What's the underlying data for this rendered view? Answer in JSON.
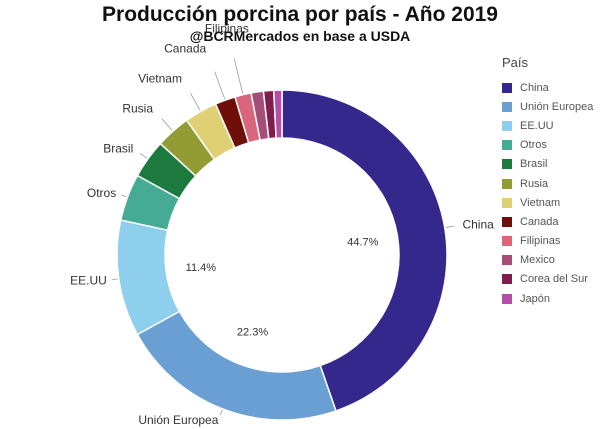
{
  "chart_data": {
    "type": "pie",
    "donut": true,
    "title": "Producción porcina por país - Año 2019",
    "subtitle": "@BCRMercados en base a USDA",
    "legend_title": "País",
    "legend_position": "right",
    "categories": [
      "China",
      "Unión Europea",
      "EE.UU",
      "Otros",
      "Brasil",
      "Rusia",
      "Vietnam",
      "Canada",
      "Filipinas",
      "Mexico",
      "Corea del Sur",
      "Japón"
    ],
    "values": [
      44.7,
      22.3,
      11.4,
      4.6,
      3.8,
      3.4,
      3.2,
      2.0,
      1.6,
      1.2,
      1.0,
      0.8
    ],
    "colors": [
      "#34288c",
      "#6a9fd4",
      "#8ecfee",
      "#45ab94",
      "#1c7a3e",
      "#939b35",
      "#dfcf75",
      "#6e0f0a",
      "#d9667c",
      "#a44e78",
      "#7f1d4d",
      "#b64ea9"
    ],
    "outer_labels": [
      "China",
      "Unión Europea",
      "EE.UU",
      "Otros",
      "Brasil",
      "Rusia",
      "Vietnam",
      "Canada",
      "Filipinas"
    ],
    "percent_labels": [
      {
        "category": "China",
        "text": "44.7%"
      },
      {
        "category": "Unión Europea",
        "text": "22.3%"
      },
      {
        "category": "EE.UU",
        "text": "11.4%"
      }
    ]
  }
}
